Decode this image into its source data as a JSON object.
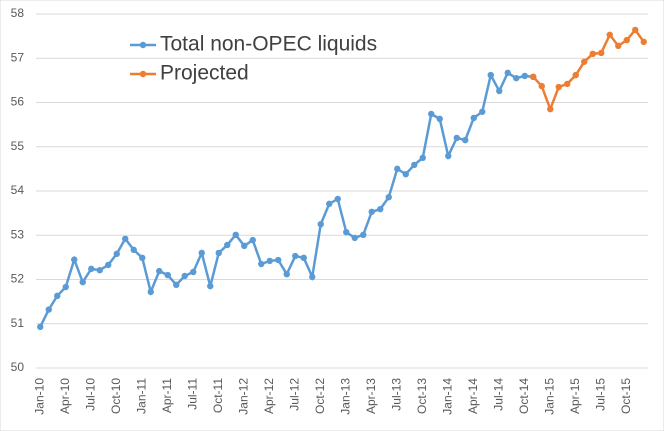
{
  "chart_data": {
    "type": "line",
    "categories": [
      "Jan-10",
      null,
      null,
      "Apr-10",
      null,
      null,
      "Jul-10",
      null,
      null,
      "Oct-10",
      null,
      null,
      "Jan-11",
      null,
      null,
      "Apr-11",
      null,
      null,
      "Jul-11",
      null,
      null,
      "Oct-11",
      null,
      null,
      "Jan-12",
      null,
      null,
      "Apr-12",
      null,
      null,
      "Jul-12",
      null,
      null,
      "Oct-12",
      null,
      null,
      "Jan-13",
      null,
      null,
      "Apr-13",
      null,
      null,
      "Jul-13",
      null,
      null,
      "Oct-13",
      null,
      null,
      "Jan-14",
      null,
      null,
      "Apr-14",
      null,
      null,
      "Jul-14",
      null,
      null,
      "Oct-14",
      null,
      null,
      "Jan-15",
      null,
      null,
      "Apr-15",
      null,
      null,
      "Jul-15",
      null,
      null,
      "Oct-15",
      null,
      null
    ],
    "series": [
      {
        "name": "Total non-OPEC liquids",
        "color": "#5b9bd5",
        "values": [
          50.93,
          51.32,
          51.63,
          51.83,
          52.45,
          51.94,
          52.24,
          52.21,
          52.33,
          52.58,
          52.92,
          52.67,
          52.49,
          51.72,
          52.19,
          52.1,
          51.88,
          52.08,
          52.17,
          52.6,
          51.85,
          52.6,
          52.78,
          53.01,
          52.76,
          52.89,
          52.35,
          52.42,
          52.44,
          52.12,
          52.53,
          52.49,
          52.06,
          53.25,
          53.71,
          53.82,
          53.07,
          52.94,
          53.01,
          53.53,
          53.59,
          53.86,
          54.5,
          54.38,
          54.59,
          54.75,
          55.74,
          55.63,
          54.79,
          55.2,
          55.15,
          55.65,
          55.79,
          56.62,
          56.26,
          56.67,
          56.55,
          56.6,
          56.58,
          null,
          null,
          null,
          null,
          null,
          null,
          null,
          null,
          null,
          null,
          null,
          null,
          null
        ]
      },
      {
        "name": "Projected",
        "color": "#ed7d31",
        "values": [
          null,
          null,
          null,
          null,
          null,
          null,
          null,
          null,
          null,
          null,
          null,
          null,
          null,
          null,
          null,
          null,
          null,
          null,
          null,
          null,
          null,
          null,
          null,
          null,
          null,
          null,
          null,
          null,
          null,
          null,
          null,
          null,
          null,
          null,
          null,
          null,
          null,
          null,
          null,
          null,
          null,
          null,
          null,
          null,
          null,
          null,
          null,
          null,
          null,
          null,
          null,
          null,
          null,
          null,
          null,
          null,
          null,
          null,
          56.58,
          56.37,
          55.85,
          56.35,
          56.42,
          56.62,
          56.92,
          57.1,
          57.12,
          57.53,
          57.28,
          57.41,
          57.64,
          57.37
        ]
      }
    ],
    "ylim": [
      50,
      58
    ],
    "yticks": [
      50,
      51,
      52,
      53,
      54,
      55,
      56,
      57,
      58
    ],
    "grid": true,
    "legend": "top-left"
  }
}
